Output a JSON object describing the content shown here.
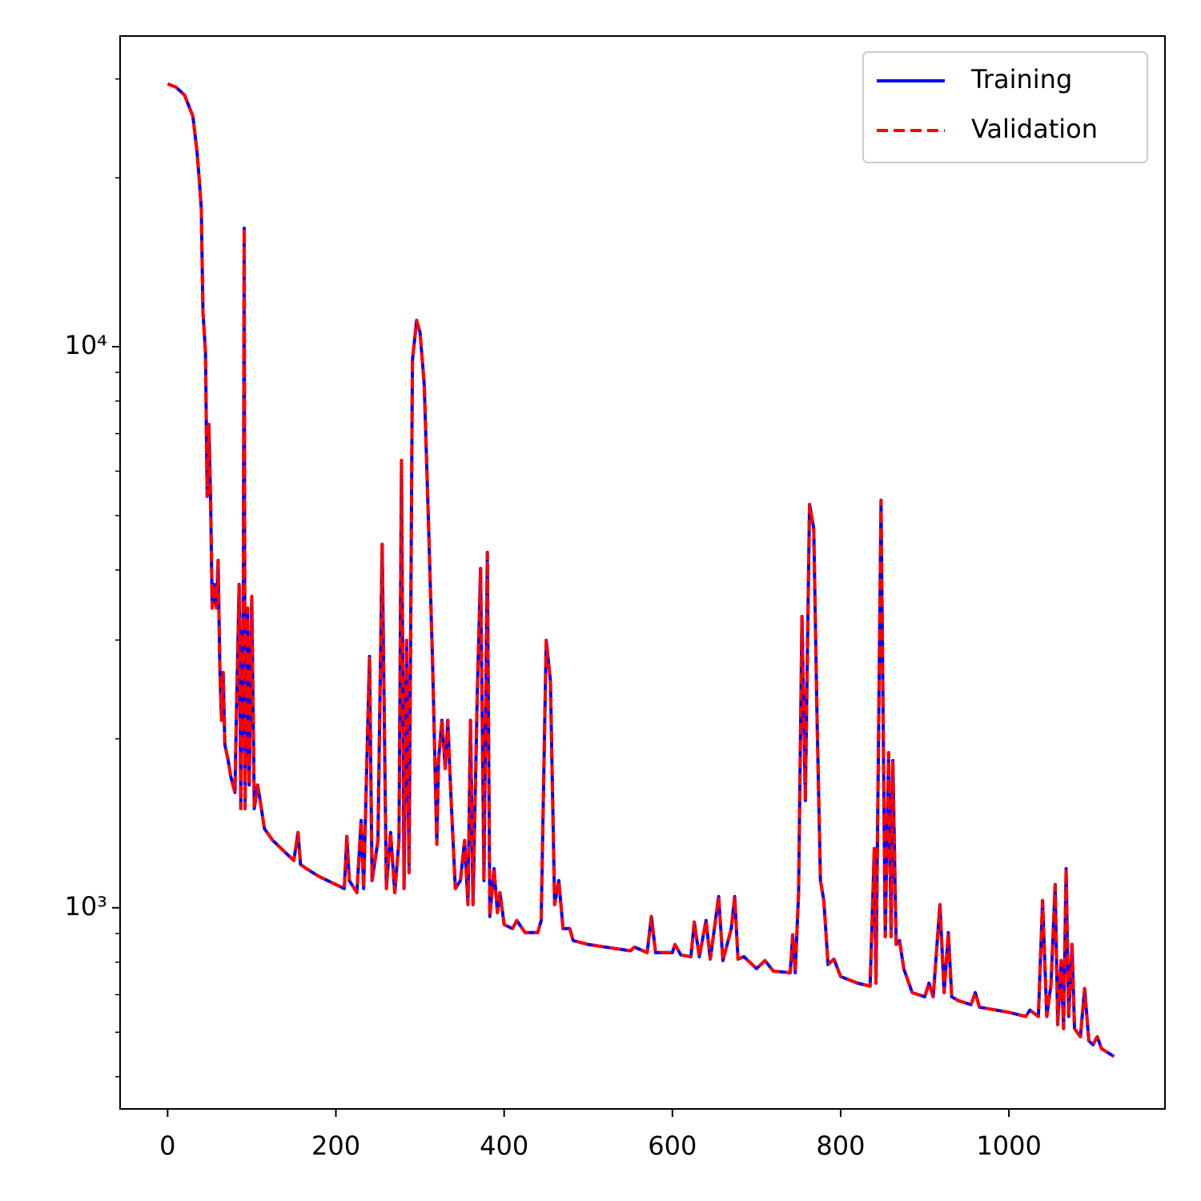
{
  "chart_data": {
    "type": "line",
    "yscale": "log",
    "legend": "upper right",
    "xlim": [
      -56.5,
      1185.5
    ],
    "ylim": [
      438,
      35780
    ],
    "xticks": [
      0,
      200,
      400,
      600,
      800,
      1000
    ],
    "yticks": [
      {
        "value": 1000,
        "label": "10³"
      },
      {
        "value": 10000,
        "label": "10⁴"
      }
    ],
    "yminorticks": [
      500,
      600,
      700,
      800,
      900,
      2000,
      3000,
      4000,
      5000,
      6000,
      7000,
      8000,
      9000,
      20000,
      30000
    ],
    "x": [
      0,
      10,
      20,
      25,
      30,
      35,
      38,
      40,
      42,
      45,
      47,
      49,
      51,
      53,
      55,
      58,
      60,
      62,
      64,
      66,
      68,
      72,
      75,
      80,
      82,
      85,
      87,
      90,
      91,
      92,
      95,
      97,
      100,
      103,
      107,
      110,
      115,
      125,
      140,
      150,
      155,
      158,
      165,
      180,
      210,
      213,
      216,
      225,
      230,
      233,
      240,
      243,
      250,
      255,
      260,
      265,
      270,
      275,
      278,
      281,
      284,
      287,
      291,
      296,
      300,
      305,
      310,
      315,
      320,
      322,
      326,
      330,
      333,
      337,
      342,
      348,
      353,
      357,
      360,
      363,
      368,
      372,
      376,
      380,
      383,
      388,
      392,
      395,
      400,
      410,
      415,
      425,
      440,
      444,
      450,
      455,
      460,
      465,
      470,
      478,
      482,
      500,
      550,
      555,
      570,
      575,
      580,
      600,
      603,
      610,
      622,
      626,
      632,
      640,
      645,
      655,
      660,
      670,
      674,
      678,
      685,
      700,
      710,
      720,
      740,
      743,
      746,
      750,
      754,
      758,
      763,
      768,
      772,
      776,
      780,
      785,
      792,
      800,
      820,
      835,
      840,
      842,
      848,
      853,
      857,
      860,
      862,
      866,
      870,
      875,
      885,
      900,
      905,
      910,
      918,
      923,
      928,
      932,
      940,
      955,
      960,
      965,
      1000,
      1020,
      1025,
      1035,
      1040,
      1045,
      1050,
      1055,
      1058,
      1062,
      1065,
      1068,
      1071,
      1075,
      1078,
      1085,
      1090,
      1095,
      1100,
      1105,
      1110,
      1125
    ],
    "series": [
      {
        "name": "Training",
        "color": "#0000ff",
        "linestyle": "solid",
        "values": [
          29400,
          29000,
          28100,
          26900,
          25760,
          22220,
          19470,
          17650,
          11520,
          9770,
          5410,
          7270,
          5410,
          3420,
          3770,
          3420,
          4160,
          2715,
          2158,
          2626,
          1954,
          1830,
          1714,
          1605,
          2303,
          3770,
          1502,
          3770,
          16260,
          1502,
          3420,
          1655,
          3590,
          1502,
          1655,
          1553,
          1384,
          1318,
          1254,
          1214,
          1362,
          1194,
          1174,
          1137,
          1082,
          1340,
          1118,
          1064,
          1431,
          1082,
          2805,
          1118,
          1318,
          4445,
          1082,
          1362,
          1064,
          1318,
          6270,
          1082,
          2996,
          1155,
          9460,
          11140,
          10610,
          8570,
          4900,
          2715,
          1297,
          1830,
          2158,
          1771,
          2158,
          1553,
          1082,
          1118,
          1318,
          1013,
          2158,
          1013,
          2380,
          4025,
          1118,
          4300,
          965,
          1174,
          980,
          1064,
          933,
          918,
          949,
          903,
          903,
          949,
          2996,
          2542,
          1013,
          1118,
          918,
          918,
          874,
          860,
          838,
          851,
          832,
          965,
          832,
          832,
          860,
          824,
          818,
          943,
          818,
          949,
          810,
          1047,
          805,
          918,
          1047,
          810,
          818,
          779,
          805,
          771,
          766,
          895,
          766,
          1064,
          3305,
          1553,
          5235,
          4745,
          2158,
          1118,
          1030,
          792,
          810,
          754,
          734,
          725,
          1275,
          734,
          5325,
          888,
          1890,
          888,
          1830,
          860,
          874,
          779,
          706,
          694,
          734,
          694,
          1013,
          706,
          903,
          694,
          683,
          672,
          706,
          665,
          651,
          640,
          657,
          640,
          1030,
          640,
          729,
          1100,
          619,
          805,
          609,
          1174,
          640,
          860,
          609,
          589,
          718,
          579,
          570,
          589,
          561,
          543
        ]
      },
      {
        "name": "Validation",
        "color": "#ff0000",
        "linestyle": "dashed",
        "values": [
          29400,
          29000,
          28100,
          26900,
          25760,
          22220,
          19470,
          17650,
          11520,
          9770,
          5410,
          7270,
          5410,
          3420,
          3770,
          3420,
          4160,
          2715,
          2158,
          2626,
          1954,
          1830,
          1714,
          1605,
          2303,
          3770,
          1502,
          3770,
          16260,
          1502,
          3420,
          1655,
          3590,
          1502,
          1655,
          1553,
          1384,
          1318,
          1254,
          1214,
          1362,
          1194,
          1174,
          1137,
          1082,
          1340,
          1118,
          1064,
          1431,
          1082,
          2805,
          1118,
          1318,
          4445,
          1082,
          1362,
          1064,
          1318,
          6270,
          1082,
          2996,
          1155,
          9460,
          11140,
          10610,
          8570,
          4900,
          2715,
          1297,
          1830,
          2158,
          1771,
          2158,
          1553,
          1082,
          1118,
          1318,
          1013,
          2158,
          1013,
          2380,
          4025,
          1118,
          4300,
          965,
          1174,
          980,
          1064,
          933,
          918,
          949,
          903,
          903,
          949,
          2996,
          2542,
          1013,
          1118,
          918,
          918,
          874,
          860,
          838,
          851,
          832,
          965,
          832,
          832,
          860,
          824,
          818,
          943,
          818,
          949,
          810,
          1047,
          805,
          918,
          1047,
          810,
          818,
          779,
          805,
          771,
          766,
          895,
          766,
          1064,
          3305,
          1553,
          5235,
          4745,
          2158,
          1118,
          1030,
          792,
          810,
          754,
          734,
          725,
          1275,
          734,
          5325,
          888,
          1890,
          888,
          1830,
          860,
          874,
          779,
          706,
          694,
          734,
          694,
          1013,
          706,
          903,
          694,
          683,
          672,
          706,
          665,
          651,
          640,
          657,
          640,
          1030,
          640,
          729,
          1100,
          619,
          805,
          609,
          1174,
          640,
          860,
          609,
          589,
          718,
          579,
          570,
          589,
          561,
          543
        ]
      }
    ]
  }
}
